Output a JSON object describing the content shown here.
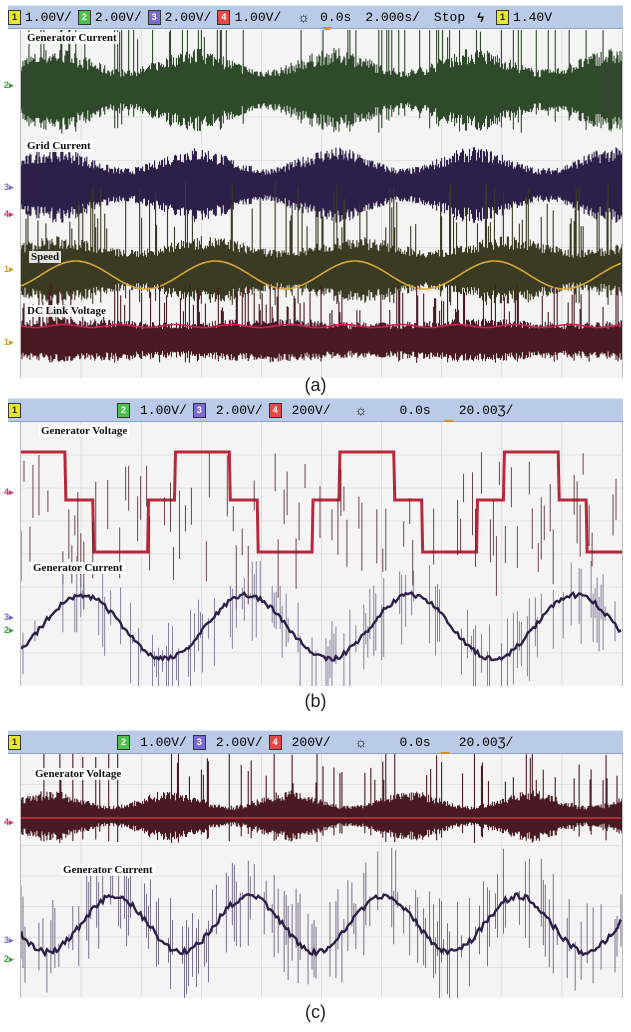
{
  "panels": [
    {
      "id": "a",
      "statusbar": {
        "ch1": "1.00V/",
        "ch2": "2.00V/",
        "ch3": "2.00V/",
        "ch4": "1.00V/",
        "delay": "0.0s",
        "timebase": "2.000s/",
        "run_state": "Stop",
        "trigger_level": "1.40V"
      },
      "trace_labels": [
        "Generator Current",
        "Grid Current",
        "Speed",
        "DC Link Voltage"
      ],
      "caption": "(a)"
    },
    {
      "id": "b",
      "statusbar": {
        "ch2": "1.00V/",
        "ch3": "2.00V/",
        "ch4": "200V/",
        "delay": "0.0s",
        "timebase": "20.00Ʒ/"
      },
      "trace_labels": [
        "Generator Voltage",
        "Generator Current"
      ],
      "caption": "(b)"
    },
    {
      "id": "c",
      "statusbar": {
        "ch2": "1.00V/",
        "ch3": "2.00V/",
        "ch4": "200V/",
        "delay": "0.0s",
        "timebase": "20.00Ʒ/"
      },
      "trace_labels": [
        "Generator Voltage",
        "Generator Current"
      ],
      "caption": "(c)"
    }
  ],
  "colors": {
    "green_trace": "#2f4a2a",
    "purple_trace": "#2d1f4a",
    "dark_red_trace": "#4a1a22",
    "speed_trace": "#d8a83a",
    "dc_link_trace": "#d02050",
    "statusbar": "#b9cbe6",
    "trigger_marker": "#e08a1a"
  }
}
